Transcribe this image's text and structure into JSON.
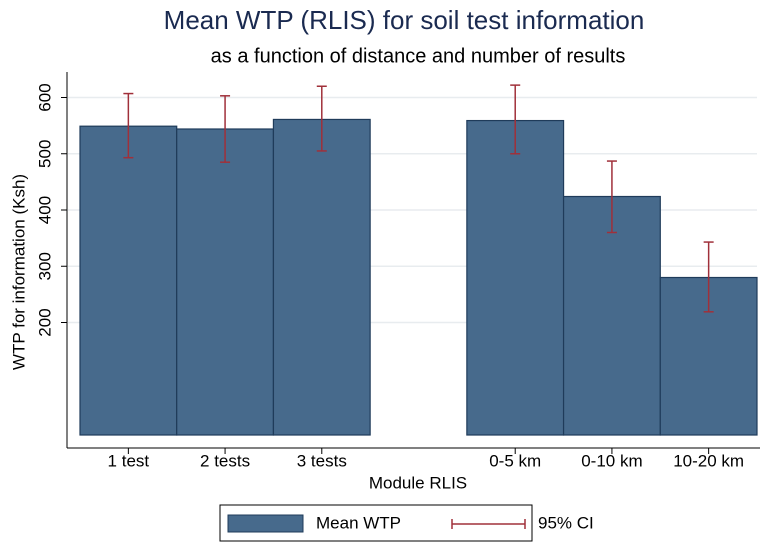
{
  "chart_data": {
    "type": "bar",
    "title": "Mean WTP (RLIS) for soil test information",
    "subtitle": "as a function of distance and number of results",
    "xlabel": "Module RLIS",
    "ylabel": "WTP for information (Ksh)",
    "categories": [
      "1 test",
      "2 tests",
      "3 tests",
      null,
      "0-5 km",
      "0-10 km",
      "10-20 km"
    ],
    "series": [
      {
        "name": "Mean WTP",
        "color": "#476a8c",
        "values": [
          549,
          544,
          561,
          null,
          559,
          424,
          280
        ]
      }
    ],
    "ci": {
      "name": "95% CI",
      "color": "#a0303a",
      "lower": [
        493,
        485,
        505,
        null,
        500,
        360,
        219
      ],
      "upper": [
        607,
        603,
        620,
        null,
        622,
        487,
        343
      ]
    },
    "ylim": [
      0,
      640
    ],
    "yticks": [
      200,
      300,
      400,
      500,
      600
    ],
    "grid": true,
    "legend": "bottom"
  }
}
